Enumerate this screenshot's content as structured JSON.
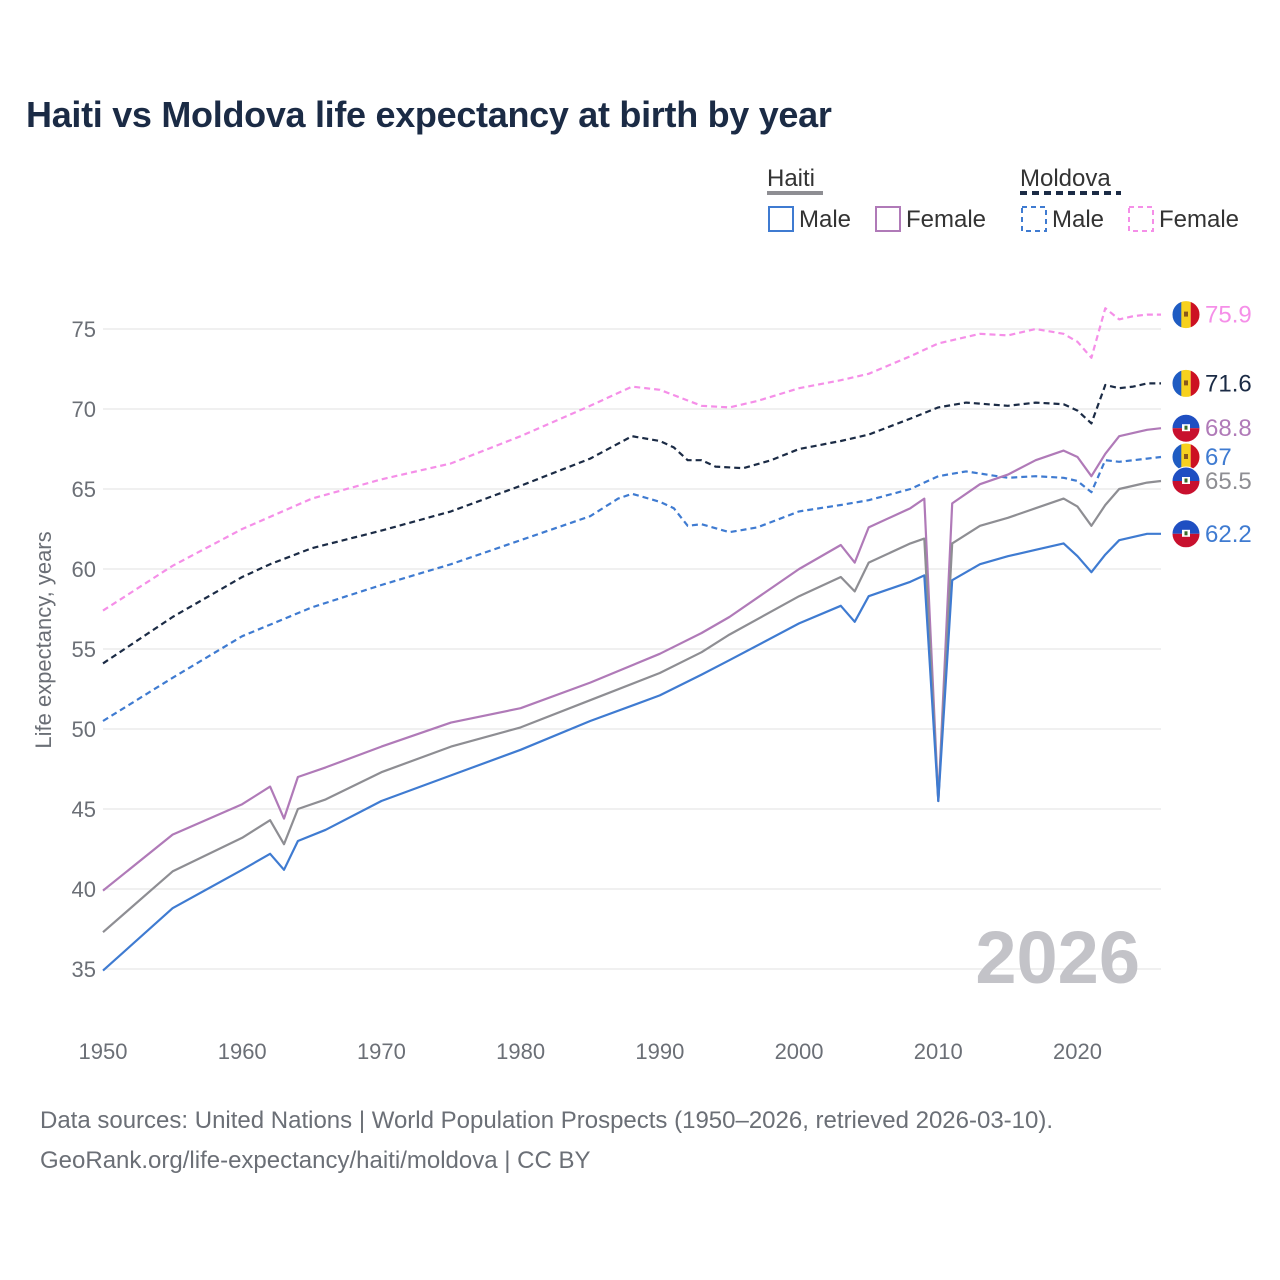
{
  "title": "Haiti vs Moldova life expectancy at birth by year",
  "footer": {
    "source": "Data sources: United Nations | World Population Prospects (1950–2026, retrieved 2026-03-10).",
    "credit": "GeoRank.org/life-expectancy/haiti/moldova | CC BY"
  },
  "legend": {
    "groups": [
      {
        "country": "Haiti",
        "items": [
          "Male",
          "Female"
        ]
      },
      {
        "country": "Moldova",
        "items": [
          "Male",
          "Female"
        ]
      }
    ]
  },
  "colors": {
    "haiti_male": "#3f7bd1",
    "haiti_female": "#b07ab8",
    "haiti_total": "#8e8e93",
    "moldova_male": "#3f7bd1",
    "moldova_female": "#f58fe8",
    "moldova_total": "#1b2b45",
    "grid": "#e6e6e6",
    "year_watermark": "#c3c3c8"
  },
  "chart_data": {
    "type": "line",
    "title": "Haiti vs Moldova life expectancy at birth by year",
    "xlabel": "",
    "ylabel": "Life expectancy, years",
    "xlim": [
      1950,
      2026
    ],
    "ylim": [
      32,
      78
    ],
    "x_ticks": [
      1950,
      1960,
      1970,
      1980,
      1990,
      2000,
      2010,
      2020
    ],
    "y_ticks": [
      35,
      40,
      45,
      50,
      55,
      60,
      65,
      70,
      75
    ],
    "current_year": "2026",
    "grid": true,
    "series": [
      {
        "name": "Moldova Female",
        "country": "Moldova",
        "sex": "Female",
        "key": "moldova_female",
        "dashed": true,
        "points": [
          [
            1950,
            57.4
          ],
          [
            1955,
            60.2
          ],
          [
            1960,
            62.5
          ],
          [
            1965,
            64.4
          ],
          [
            1970,
            65.6
          ],
          [
            1975,
            66.6
          ],
          [
            1980,
            68.3
          ],
          [
            1985,
            70.2
          ],
          [
            1988,
            71.4
          ],
          [
            1990,
            71.2
          ],
          [
            1993,
            70.2
          ],
          [
            1995,
            70.1
          ],
          [
            1997,
            70.5
          ],
          [
            2000,
            71.3
          ],
          [
            2003,
            71.8
          ],
          [
            2005,
            72.2
          ],
          [
            2008,
            73.3
          ],
          [
            2010,
            74.1
          ],
          [
            2013,
            74.7
          ],
          [
            2015,
            74.6
          ],
          [
            2017,
            75.0
          ],
          [
            2019,
            74.7
          ],
          [
            2020,
            74.2
          ],
          [
            2021,
            73.2
          ],
          [
            2022,
            76.3
          ],
          [
            2023,
            75.6
          ],
          [
            2024,
            75.8
          ],
          [
            2025,
            75.9
          ],
          [
            2026,
            75.9
          ]
        ],
        "end_label": "75.9"
      },
      {
        "name": "Moldova",
        "country": "Moldova",
        "sex": "Total",
        "key": "moldova_total",
        "dashed": true,
        "points": [
          [
            1950,
            54.1
          ],
          [
            1955,
            57.0
          ],
          [
            1960,
            59.5
          ],
          [
            1962,
            60.3
          ],
          [
            1965,
            61.3
          ],
          [
            1970,
            62.4
          ],
          [
            1975,
            63.6
          ],
          [
            1980,
            65.2
          ],
          [
            1985,
            66.9
          ],
          [
            1988,
            68.3
          ],
          [
            1990,
            68.0
          ],
          [
            1991,
            67.6
          ],
          [
            1992,
            66.8
          ],
          [
            1993,
            66.8
          ],
          [
            1994,
            66.4
          ],
          [
            1996,
            66.3
          ],
          [
            1998,
            66.8
          ],
          [
            2000,
            67.5
          ],
          [
            2003,
            68.0
          ],
          [
            2005,
            68.4
          ],
          [
            2008,
            69.4
          ],
          [
            2010,
            70.1
          ],
          [
            2012,
            70.4
          ],
          [
            2015,
            70.2
          ],
          [
            2017,
            70.4
          ],
          [
            2019,
            70.3
          ],
          [
            2020,
            69.9
          ],
          [
            2021,
            69.1
          ],
          [
            2022,
            71.5
          ],
          [
            2023,
            71.3
          ],
          [
            2024,
            71.4
          ],
          [
            2025,
            71.6
          ],
          [
            2026,
            71.6
          ]
        ],
        "end_label": "71.6"
      },
      {
        "name": "Moldova Male",
        "country": "Moldova",
        "sex": "Male",
        "key": "moldova_male",
        "dashed": true,
        "points": [
          [
            1950,
            50.5
          ],
          [
            1955,
            53.2
          ],
          [
            1960,
            55.8
          ],
          [
            1965,
            57.6
          ],
          [
            1970,
            59.0
          ],
          [
            1975,
            60.3
          ],
          [
            1980,
            61.8
          ],
          [
            1985,
            63.3
          ],
          [
            1987,
            64.4
          ],
          [
            1988,
            64.7
          ],
          [
            1990,
            64.2
          ],
          [
            1991,
            63.8
          ],
          [
            1992,
            62.7
          ],
          [
            1993,
            62.8
          ],
          [
            1995,
            62.3
          ],
          [
            1997,
            62.6
          ],
          [
            2000,
            63.6
          ],
          [
            2003,
            64.0
          ],
          [
            2005,
            64.3
          ],
          [
            2008,
            65.0
          ],
          [
            2010,
            65.8
          ],
          [
            2012,
            66.1
          ],
          [
            2015,
            65.7
          ],
          [
            2017,
            65.8
          ],
          [
            2019,
            65.7
          ],
          [
            2020,
            65.5
          ],
          [
            2021,
            64.8
          ],
          [
            2022,
            66.8
          ],
          [
            2023,
            66.7
          ],
          [
            2025,
            66.9
          ],
          [
            2026,
            67.0
          ]
        ],
        "end_label": "67"
      },
      {
        "name": "Haiti Female",
        "country": "Haiti",
        "sex": "Female",
        "key": "haiti_female",
        "dashed": false,
        "points": [
          [
            1950,
            39.9
          ],
          [
            1955,
            43.4
          ],
          [
            1960,
            45.3
          ],
          [
            1962,
            46.4
          ],
          [
            1963,
            44.4
          ],
          [
            1964,
            47.0
          ],
          [
            1966,
            47.6
          ],
          [
            1970,
            48.9
          ],
          [
            1975,
            50.4
          ],
          [
            1980,
            51.3
          ],
          [
            1985,
            52.9
          ],
          [
            1990,
            54.7
          ],
          [
            1993,
            56.0
          ],
          [
            1995,
            57.0
          ],
          [
            2000,
            60.0
          ],
          [
            2003,
            61.5
          ],
          [
            2004,
            60.4
          ],
          [
            2005,
            62.6
          ],
          [
            2008,
            63.8
          ],
          [
            2009,
            64.4
          ],
          [
            2010,
            45.5
          ],
          [
            2011,
            64.1
          ],
          [
            2013,
            65.3
          ],
          [
            2015,
            65.9
          ],
          [
            2017,
            66.8
          ],
          [
            2019,
            67.4
          ],
          [
            2020,
            67.0
          ],
          [
            2021,
            65.8
          ],
          [
            2022,
            67.2
          ],
          [
            2023,
            68.3
          ],
          [
            2025,
            68.7
          ],
          [
            2026,
            68.8
          ]
        ],
        "end_label": "68.8"
      },
      {
        "name": "Haiti",
        "country": "Haiti",
        "sex": "Total",
        "key": "haiti_total",
        "dashed": false,
        "points": [
          [
            1950,
            37.3
          ],
          [
            1955,
            41.1
          ],
          [
            1960,
            43.2
          ],
          [
            1962,
            44.3
          ],
          [
            1963,
            42.8
          ],
          [
            1964,
            45.0
          ],
          [
            1966,
            45.6
          ],
          [
            1970,
            47.3
          ],
          [
            1975,
            48.9
          ],
          [
            1980,
            50.1
          ],
          [
            1985,
            51.8
          ],
          [
            1990,
            53.5
          ],
          [
            1993,
            54.8
          ],
          [
            1995,
            55.9
          ],
          [
            2000,
            58.3
          ],
          [
            2003,
            59.5
          ],
          [
            2004,
            58.6
          ],
          [
            2005,
            60.4
          ],
          [
            2008,
            61.6
          ],
          [
            2009,
            61.9
          ],
          [
            2010,
            45.5
          ],
          [
            2011,
            61.6
          ],
          [
            2013,
            62.7
          ],
          [
            2015,
            63.2
          ],
          [
            2017,
            63.8
          ],
          [
            2019,
            64.4
          ],
          [
            2020,
            63.9
          ],
          [
            2021,
            62.7
          ],
          [
            2022,
            64.0
          ],
          [
            2023,
            65.0
          ],
          [
            2025,
            65.4
          ],
          [
            2026,
            65.5
          ]
        ],
        "end_label": "65.5"
      },
      {
        "name": "Haiti Male",
        "country": "Haiti",
        "sex": "Male",
        "key": "haiti_male",
        "dashed": false,
        "points": [
          [
            1950,
            34.9
          ],
          [
            1955,
            38.8
          ],
          [
            1960,
            41.2
          ],
          [
            1962,
            42.2
          ],
          [
            1963,
            41.2
          ],
          [
            1964,
            43.0
          ],
          [
            1966,
            43.7
          ],
          [
            1970,
            45.5
          ],
          [
            1975,
            47.1
          ],
          [
            1980,
            48.7
          ],
          [
            1985,
            50.5
          ],
          [
            1990,
            52.1
          ],
          [
            1993,
            53.4
          ],
          [
            1995,
            54.3
          ],
          [
            2000,
            56.6
          ],
          [
            2003,
            57.7
          ],
          [
            2004,
            56.7
          ],
          [
            2005,
            58.3
          ],
          [
            2008,
            59.2
          ],
          [
            2009,
            59.6
          ],
          [
            2010,
            45.5
          ],
          [
            2011,
            59.3
          ],
          [
            2013,
            60.3
          ],
          [
            2015,
            60.8
          ],
          [
            2017,
            61.2
          ],
          [
            2019,
            61.6
          ],
          [
            2020,
            60.8
          ],
          [
            2021,
            59.8
          ],
          [
            2022,
            60.9
          ],
          [
            2023,
            61.8
          ],
          [
            2025,
            62.2
          ],
          [
            2026,
            62.2
          ]
        ],
        "end_label": "62.2"
      }
    ]
  }
}
